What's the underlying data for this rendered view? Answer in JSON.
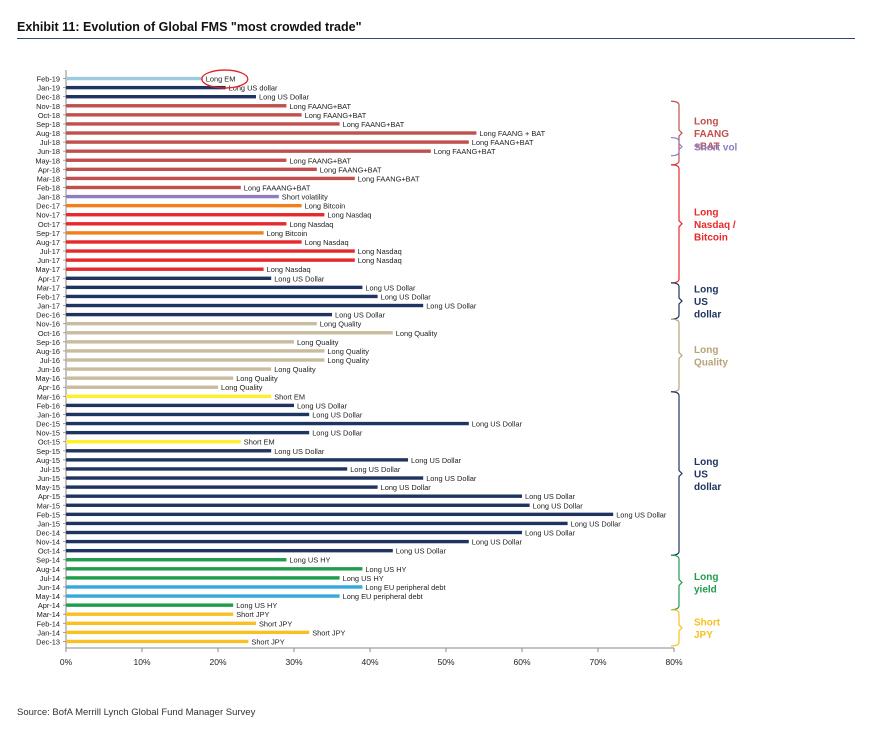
{
  "exhibit_title": "Exhibit 11: Evolution of Global FMS \"most crowded trade\"",
  "source": "Source: BofA Merrill Lynch Global Fund Manager Survey",
  "chart_data": {
    "type": "bar",
    "orientation": "horizontal",
    "title": "Exhibit 11: Evolution of Global FMS \"most crowded trade\"",
    "xlabel": "",
    "ylabel": "",
    "xlim": [
      0,
      0.8
    ],
    "x_ticks": [
      "0%",
      "10%",
      "20%",
      "30%",
      "40%",
      "50%",
      "60%",
      "70%",
      "80%"
    ],
    "colors": {
      "navy": "#1f3461",
      "brick": "#c0504d",
      "red": "#e8292b",
      "orange": "#f07f1c",
      "purple": "#8f7dc0",
      "tan": "#c9bc9e",
      "yellow": "#fdf02a",
      "green": "#1f9c4c",
      "lightblue": "#36a9dc",
      "gold": "#f8c022",
      "sky": "#9fcbe0"
    },
    "bars": [
      {
        "month": "Feb-19",
        "value": 0.18,
        "label": "Long EM",
        "color": "sky"
      },
      {
        "month": "Jan-19",
        "value": 0.21,
        "label": "Long US dollar",
        "color": "navy"
      },
      {
        "month": "Dec-18",
        "value": 0.25,
        "label": "Long US Dollar",
        "color": "navy"
      },
      {
        "month": "Nov-18",
        "value": 0.29,
        "label": "Long FAANG+BAT",
        "color": "brick"
      },
      {
        "month": "Oct-18",
        "value": 0.31,
        "label": "Long FAANG+BAT",
        "color": "brick"
      },
      {
        "month": "Sep-18",
        "value": 0.36,
        "label": "Long FAANG+BAT",
        "color": "brick"
      },
      {
        "month": "Aug-18",
        "value": 0.54,
        "label": "Long FAANG + BAT",
        "color": "brick"
      },
      {
        "month": "Jul-18",
        "value": 0.53,
        "label": "Long FAANG+BAT",
        "color": "brick"
      },
      {
        "month": "Jun-18",
        "value": 0.48,
        "label": "Long FAANG+BAT",
        "color": "brick"
      },
      {
        "month": "May-18",
        "value": 0.29,
        "label": "Long FAANG+BAT",
        "color": "brick"
      },
      {
        "month": "Apr-18",
        "value": 0.33,
        "label": "Long FAANG+BAT",
        "color": "brick"
      },
      {
        "month": "Mar-18",
        "value": 0.38,
        "label": "Long FAANG+BAT",
        "color": "brick"
      },
      {
        "month": "Feb-18",
        "value": 0.23,
        "label": "Long FAAANG+BAT",
        "color": "brick"
      },
      {
        "month": "Jan-18",
        "value": 0.28,
        "label": "Short volatility",
        "color": "purple"
      },
      {
        "month": "Dec-17",
        "value": 0.31,
        "label": "Long Bitcoin",
        "color": "orange"
      },
      {
        "month": "Nov-17",
        "value": 0.34,
        "label": "Long Nasdaq",
        "color": "red"
      },
      {
        "month": "Oct-17",
        "value": 0.29,
        "label": "Long Nasdaq",
        "color": "red"
      },
      {
        "month": "Sep-17",
        "value": 0.26,
        "label": "Long Bitcoin",
        "color": "orange"
      },
      {
        "month": "Aug-17",
        "value": 0.31,
        "label": "Long Nasdaq",
        "color": "red"
      },
      {
        "month": "Jul-17",
        "value": 0.38,
        "label": "Long Nasdaq",
        "color": "red"
      },
      {
        "month": "Jun-17",
        "value": 0.38,
        "label": "Long Nasdaq",
        "color": "red"
      },
      {
        "month": "May-17",
        "value": 0.26,
        "label": "Long Nasdaq",
        "color": "red"
      },
      {
        "month": "Apr-17",
        "value": 0.27,
        "label": "Long US Dollar",
        "color": "navy"
      },
      {
        "month": "Mar-17",
        "value": 0.39,
        "label": "Long US Dollar",
        "color": "navy"
      },
      {
        "month": "Feb-17",
        "value": 0.41,
        "label": "Long US Dollar",
        "color": "navy"
      },
      {
        "month": "Jan-17",
        "value": 0.47,
        "label": "Long US Dollar",
        "color": "navy"
      },
      {
        "month": "Dec-16",
        "value": 0.35,
        "label": "Long US Dollar",
        "color": "navy"
      },
      {
        "month": "Nov-16",
        "value": 0.33,
        "label": "Long Quality",
        "color": "tan"
      },
      {
        "month": "Oct-16",
        "value": 0.43,
        "label": "Long Quality",
        "color": "tan"
      },
      {
        "month": "Sep-16",
        "value": 0.3,
        "label": "Long Quality",
        "color": "tan"
      },
      {
        "month": "Aug-16",
        "value": 0.34,
        "label": "Long Quality",
        "color": "tan"
      },
      {
        "month": "Jul-16",
        "value": 0.34,
        "label": "Long Quality",
        "color": "tan"
      },
      {
        "month": "Jun-16",
        "value": 0.27,
        "label": "Long Quality",
        "color": "tan"
      },
      {
        "month": "May-16",
        "value": 0.22,
        "label": "Long Quality",
        "color": "tan"
      },
      {
        "month": "Apr-16",
        "value": 0.2,
        "label": "Long Quality",
        "color": "tan"
      },
      {
        "month": "Mar-16",
        "value": 0.27,
        "label": "Short EM",
        "color": "yellow"
      },
      {
        "month": "Feb-16",
        "value": 0.3,
        "label": "Long US Dollar",
        "color": "navy"
      },
      {
        "month": "Jan-16",
        "value": 0.32,
        "label": "Long US Dollar",
        "color": "navy"
      },
      {
        "month": "Dec-15",
        "value": 0.53,
        "label": "Long US Dollar",
        "color": "navy"
      },
      {
        "month": "Nov-15",
        "value": 0.32,
        "label": "Long US Dollar",
        "color": "navy"
      },
      {
        "month": "Oct-15",
        "value": 0.23,
        "label": "Short EM",
        "color": "yellow"
      },
      {
        "month": "Sep-15",
        "value": 0.27,
        "label": "Long US Dollar",
        "color": "navy"
      },
      {
        "month": "Aug-15",
        "value": 0.45,
        "label": "Long US Dollar",
        "color": "navy"
      },
      {
        "month": "Jul-15",
        "value": 0.37,
        "label": "Long US Dollar",
        "color": "navy"
      },
      {
        "month": "Jun-15",
        "value": 0.47,
        "label": "Long US Dollar",
        "color": "navy"
      },
      {
        "month": "May-15",
        "value": 0.41,
        "label": "Long US Dollar",
        "color": "navy"
      },
      {
        "month": "Apr-15",
        "value": 0.6,
        "label": "Long US Dollar",
        "color": "navy"
      },
      {
        "month": "Mar-15",
        "value": 0.61,
        "label": "Long US Dollar",
        "color": "navy"
      },
      {
        "month": "Feb-15",
        "value": 0.72,
        "label": "Long US Dollar",
        "color": "navy"
      },
      {
        "month": "Jan-15",
        "value": 0.66,
        "label": "Long US Dollar",
        "color": "navy"
      },
      {
        "month": "Dec-14",
        "value": 0.6,
        "label": "Long US Dollar",
        "color": "navy"
      },
      {
        "month": "Nov-14",
        "value": 0.53,
        "label": "Long US Dollar",
        "color": "navy"
      },
      {
        "month": "Oct-14",
        "value": 0.43,
        "label": "Long US Dollar",
        "color": "navy"
      },
      {
        "month": "Sep-14",
        "value": 0.29,
        "label": "Long US HY",
        "color": "green"
      },
      {
        "month": "Aug-14",
        "value": 0.39,
        "label": "Long US HY",
        "color": "green"
      },
      {
        "month": "Jul-14",
        "value": 0.36,
        "label": "Long US HY",
        "color": "green"
      },
      {
        "month": "Jun-14",
        "value": 0.39,
        "label": "Long EU peripheral debt",
        "color": "lightblue"
      },
      {
        "month": "May-14",
        "value": 0.36,
        "label": "Long EU peripheral debt",
        "color": "lightblue"
      },
      {
        "month": "Apr-14",
        "value": 0.22,
        "label": "Long US HY",
        "color": "green"
      },
      {
        "month": "Mar-14",
        "value": 0.22,
        "label": "Short JPY",
        "color": "gold"
      },
      {
        "month": "Feb-14",
        "value": 0.25,
        "label": "Short JPY",
        "color": "gold"
      },
      {
        "month": "Jan-14",
        "value": 0.32,
        "label": "Short JPY",
        "color": "gold"
      },
      {
        "month": "Dec-13",
        "value": 0.24,
        "label": "Short JPY",
        "color": "gold"
      }
    ],
    "annotations": [
      {
        "lines": [
          "Long",
          "FAANG",
          "+BAT"
        ],
        "from": "Nov-18",
        "to": "May-18",
        "color": "#c0504d"
      },
      {
        "lines": [
          "Short vol"
        ],
        "from": "Jul-18",
        "to": "Jun-18",
        "color": "#8f7dc0"
      },
      {
        "lines": [
          "Long",
          "Nasdaq /",
          "Bitcoin"
        ],
        "from": "Apr-18",
        "to": "Apr-17",
        "color": "#e8292b"
      },
      {
        "lines": [
          "Long",
          "US",
          "dollar"
        ],
        "from": "Mar-17",
        "to": "Dec-16",
        "color": "#1f3461"
      },
      {
        "lines": [
          "Long",
          "Quality"
        ],
        "from": "Nov-16",
        "to": "Apr-16",
        "color": "#b9a27a"
      },
      {
        "lines": [
          "Long",
          "US",
          "dollar"
        ],
        "from": "Mar-16",
        "to": "Oct-14",
        "color": "#1f3461"
      },
      {
        "lines": [
          "Long",
          "yield"
        ],
        "from": "Sep-14",
        "to": "Apr-14",
        "color": "#1f9c4c"
      },
      {
        "lines": [
          "Short",
          "JPY"
        ],
        "from": "Mar-14",
        "to": "Dec-13",
        "color": "#f8c022"
      }
    ],
    "highlight": {
      "month": "Feb-19",
      "label": "Long EM",
      "color": "#e52020"
    }
  }
}
